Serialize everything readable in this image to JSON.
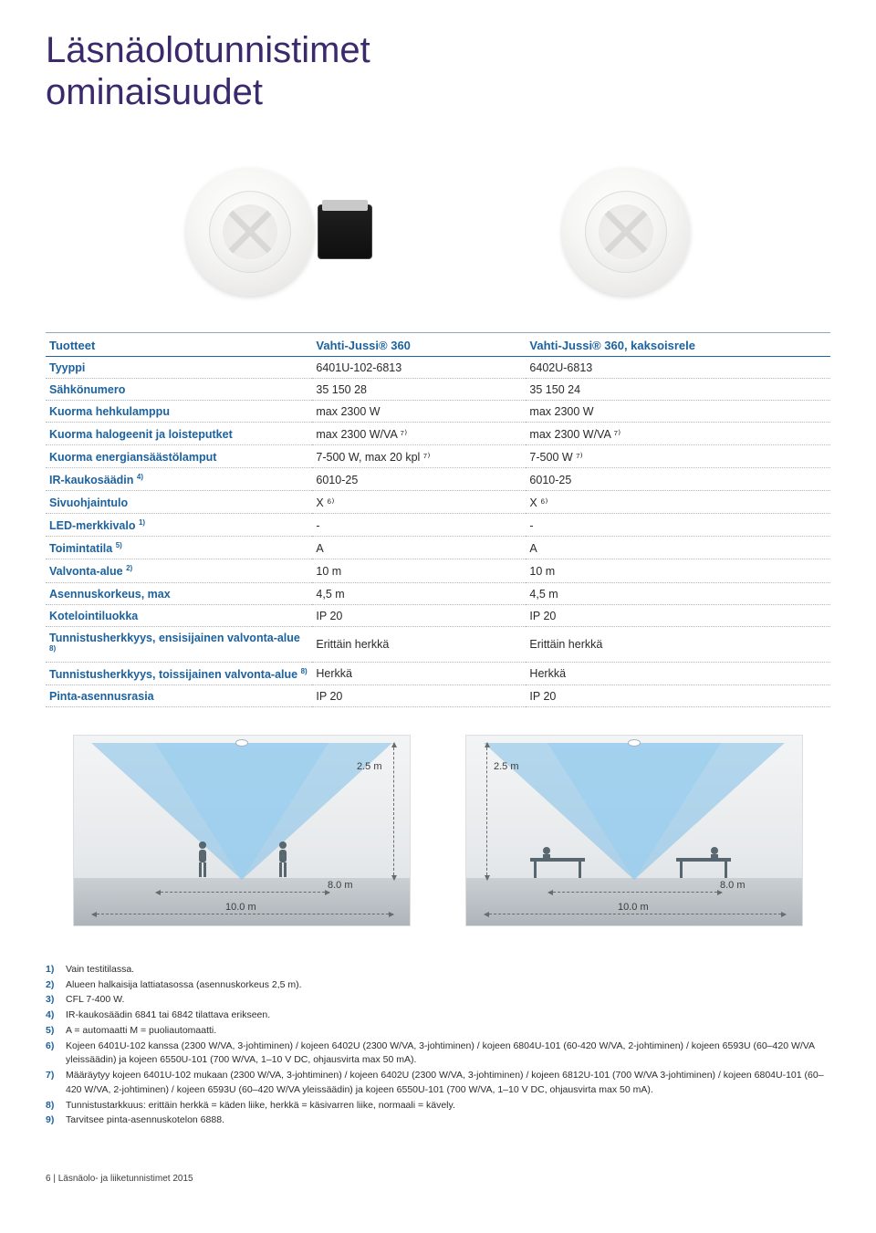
{
  "title_line1": "Läsnäolotunnistimet",
  "title_line2": "ominaisuudet",
  "colors": {
    "heading": "#3b2a6b",
    "table_accent": "#1c629e",
    "row_divider": "#b7b7b7",
    "cone_fill": "rgba(115,185,230,0.50)",
    "room_bg_top": "#f3f4f5",
    "floor_top": "#c9cfd3"
  },
  "table": {
    "header": [
      "Tuotteet",
      "Vahti-Jussi® 360",
      "Vahti-Jussi® 360, kaksoisrele"
    ],
    "rows": [
      {
        "label": "Tyyppi",
        "sup": "",
        "c1": "6401U-102-6813",
        "c2": "6402U-6813"
      },
      {
        "label": "Sähkönumero",
        "sup": "",
        "c1": "35 150 28",
        "c2": "35 150 24"
      },
      {
        "label": "Kuorma hehkulamppu",
        "sup": "",
        "c1": "max 2300 W",
        "c2": "max 2300 W"
      },
      {
        "label": "Kuorma halogeenit ja loisteputket",
        "sup": "",
        "c1": "max 2300 W/VA ⁷⁾",
        "c2": "max 2300 W/VA ⁷⁾"
      },
      {
        "label": "Kuorma energiansäästölamput",
        "sup": "",
        "c1": "7-500 W, max 20 kpl ⁷⁾",
        "c2": "7-500 W ⁷⁾"
      },
      {
        "label": "IR-kaukosäädin",
        "sup": "4)",
        "c1": "6010-25",
        "c2": "6010-25"
      },
      {
        "label": "Sivuohjaintulo",
        "sup": "",
        "c1": "X ⁶⁾",
        "c2": "X ⁶⁾"
      },
      {
        "label": "LED-merkkivalo",
        "sup": "1)",
        "c1": "-",
        "c2": "-"
      },
      {
        "label": "Toimintatila",
        "sup": "5)",
        "c1": "A",
        "c2": "A"
      },
      {
        "label": "Valvonta-alue",
        "sup": "2)",
        "c1": "10 m",
        "c2": "10 m"
      },
      {
        "label": "Asennuskorkeus, max",
        "sup": "",
        "c1": "4,5 m",
        "c2": "4,5 m"
      },
      {
        "label": "Kotelointiluokka",
        "sup": "",
        "c1": "IP 20",
        "c2": "IP 20"
      },
      {
        "label": "Tunnistusherkkyys, ensisijainen valvonta-alue",
        "sup": "8)",
        "c1": "Erittäin herkkä",
        "c2": "Erittäin herkkä"
      },
      {
        "label": "Tunnistusherkkyys, toissijainen valvonta-alue",
        "sup": "8)",
        "c1": "Herkkä",
        "c2": "Herkkä"
      },
      {
        "label": "Pinta-asennusrasia",
        "sup": "",
        "c1": "IP 20",
        "c2": "IP 20"
      }
    ]
  },
  "diagram": {
    "height_label": "2.5 m",
    "inner_width_label": "8.0 m",
    "outer_width_label": "10.0 m"
  },
  "footnotes": [
    {
      "n": "1)",
      "t": "Vain testitilassa."
    },
    {
      "n": "2)",
      "t": "Alueen halkaisija lattiatasossa (asennuskorkeus 2,5 m)."
    },
    {
      "n": "3)",
      "t": "CFL 7-400 W."
    },
    {
      "n": "4)",
      "t": "IR-kaukosäädin 6841 tai 6842 tilattava erikseen."
    },
    {
      "n": "5)",
      "t": "A = automaatti M = puoliautomaatti."
    },
    {
      "n": "6)",
      "t": "Kojeen 6401U-102 kanssa (2300 W/VA, 3-johtiminen) / kojeen 6402U (2300 W/VA, 3-johtiminen) / kojeen 6804U-101 (60-420 W/VA, 2-johtiminen) / kojeen 6593U (60–420 W/VA yleissäädin) ja kojeen 6550U-101 (700 W/VA, 1–10 V DC, ohjausvirta max 50 mA)."
    },
    {
      "n": "7)",
      "t": "Määräytyy kojeen 6401U-102 mukaan (2300 W/VA, 3-johtiminen) / kojeen 6402U (2300 W/VA, 3-johtiminen) / kojeen 6812U-101 (700 W/VA 3-johtiminen) / kojeen 6804U-101 (60–420 W/VA, 2-johtiminen) / kojeen 6593U (60–420 W/VA yleissäädin) ja kojeen 6550U-101 (700 W/VA, 1–10 V DC, ohjausvirta max 50 mA)."
    },
    {
      "n": "8)",
      "t": "Tunnistustarkkuus: erittäin herkkä = käden liike, herkkä = käsivarren liike, normaali = kävely."
    },
    {
      "n": "9)",
      "t": "Tarvitsee pinta-asennuskotelon 6888."
    }
  ],
  "footer": {
    "page": "6",
    "sep": " | ",
    "doc": "Läsnäolo- ja liiketunnistimet 2015"
  }
}
